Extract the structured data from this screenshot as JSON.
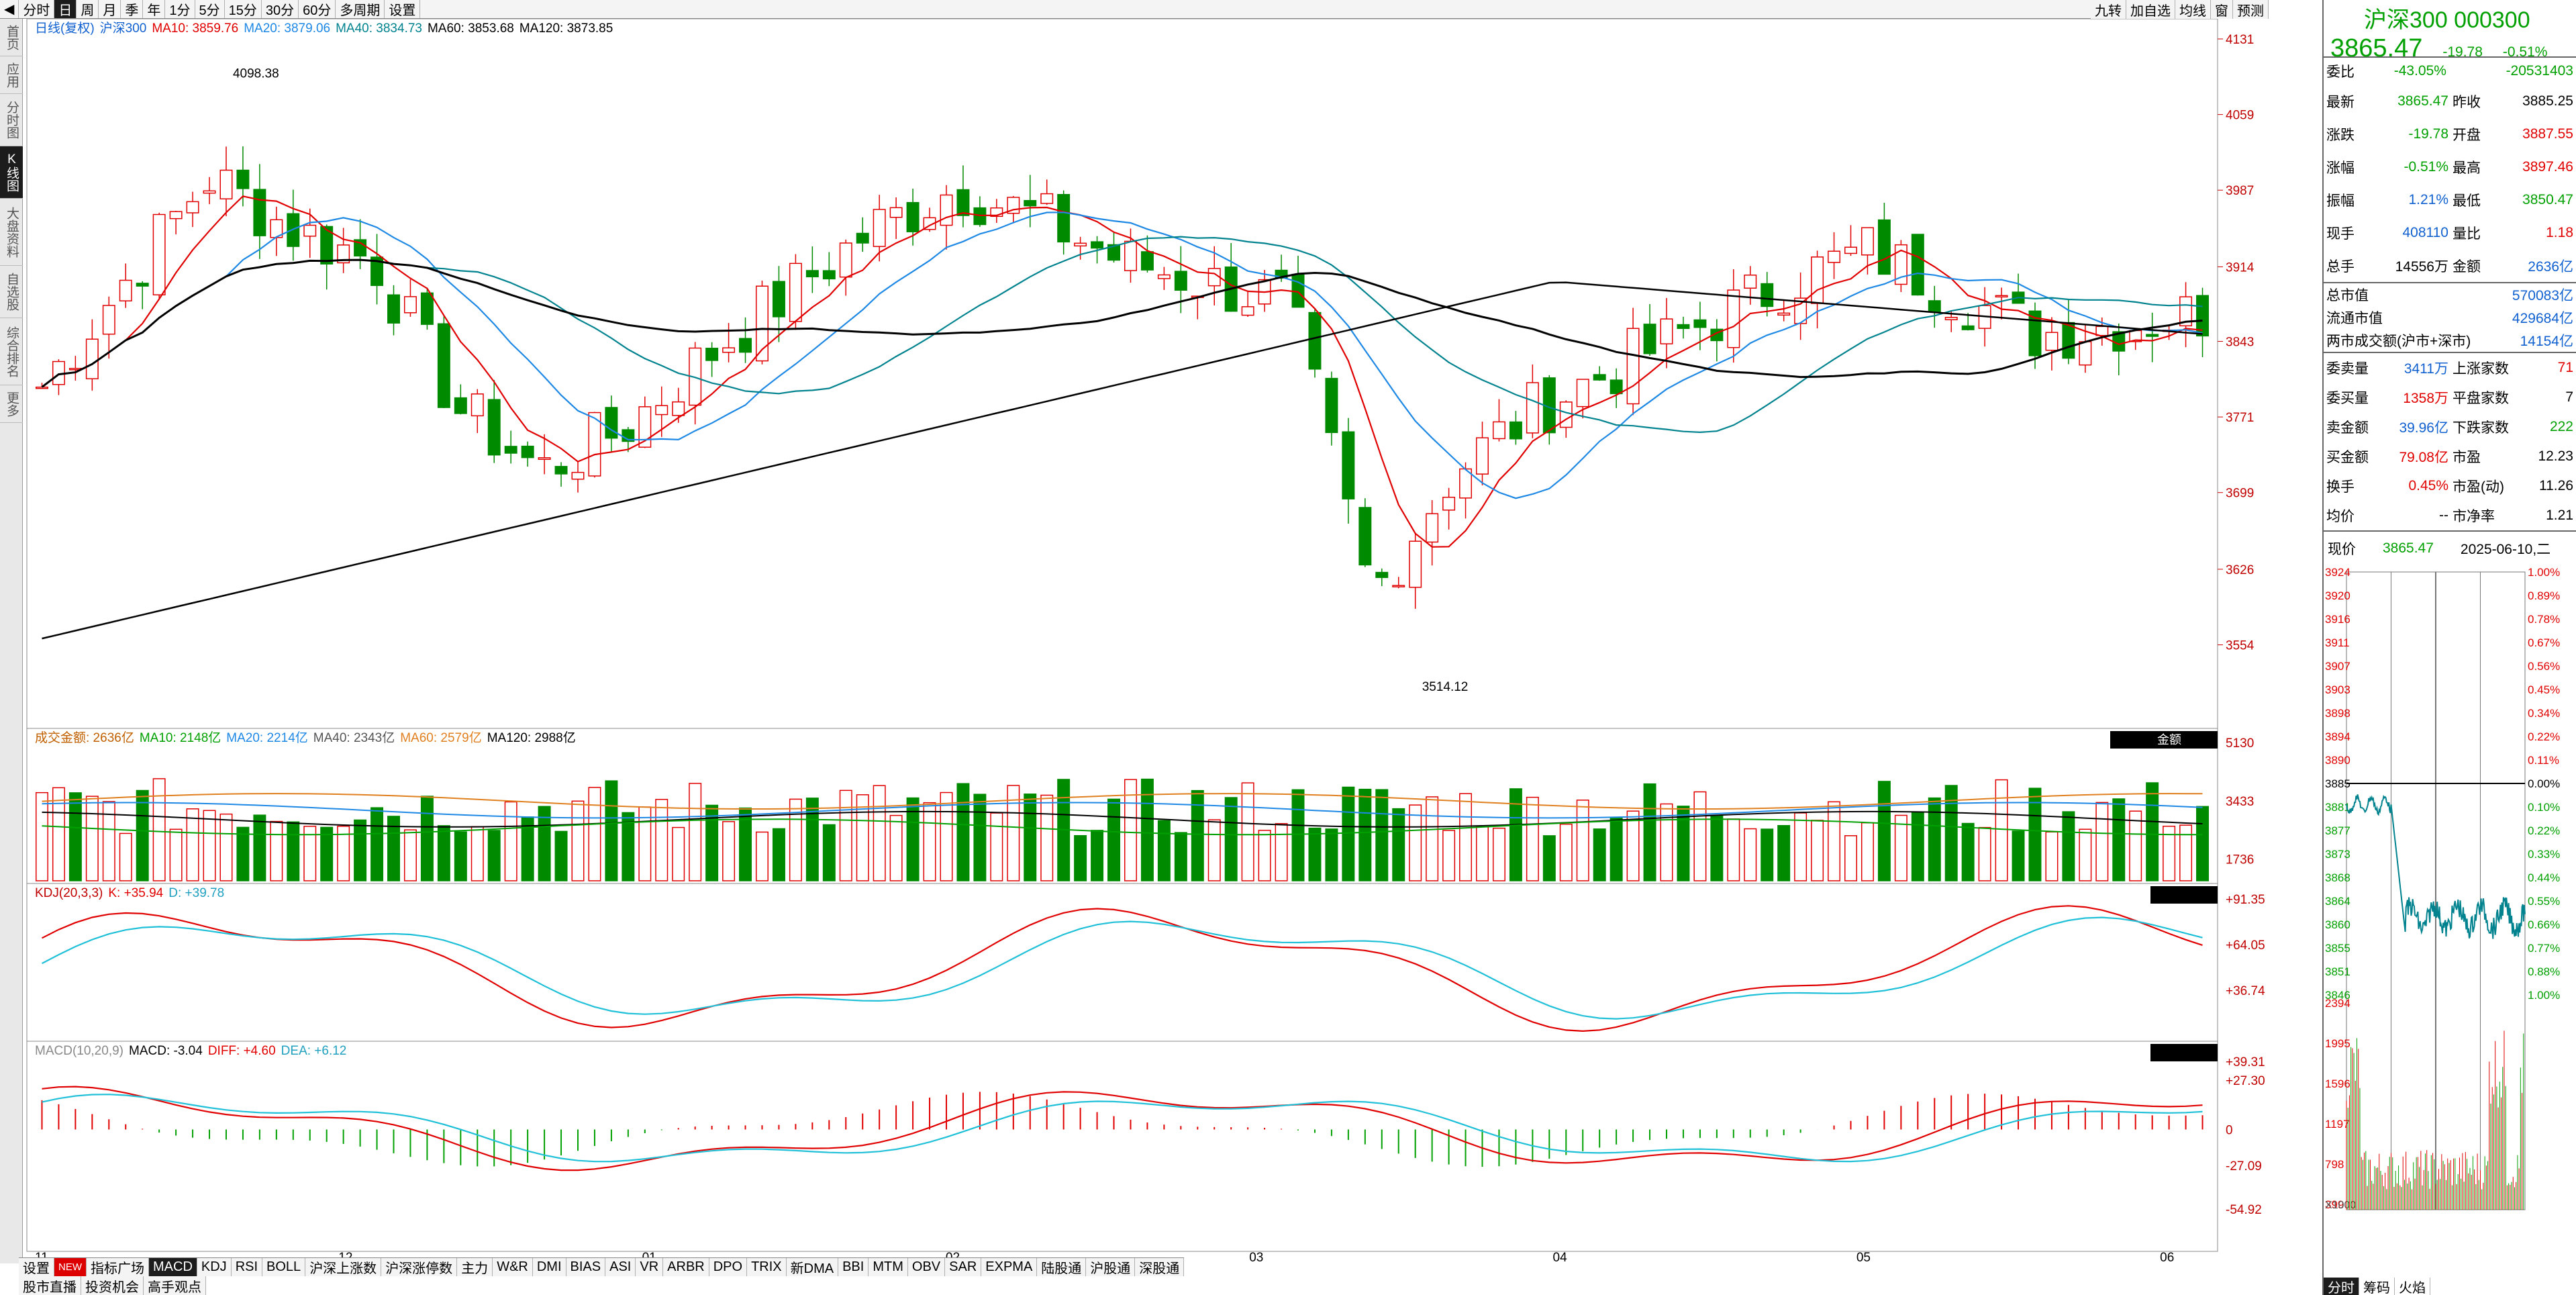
{
  "topbar": {
    "period_buttons": [
      "分时",
      "日",
      "周",
      "月",
      "季",
      "年",
      "1分",
      "5分",
      "15分",
      "30分",
      "60分",
      "多周期",
      "设置"
    ],
    "active_period": "日",
    "right_buttons": [
      "九转",
      "加自选",
      "均线",
      "窗",
      "预测"
    ]
  },
  "sidebar": {
    "items": [
      "首页",
      "应用",
      "分时图",
      "K线图",
      "大盘资料",
      "自选股",
      "综合排名",
      "更多"
    ],
    "active": "K线图"
  },
  "main_legend": {
    "title": "日线(复权)",
    "name": "沪深300",
    "ma10": "MA10: 3859.76",
    "ma20": "MA20: 3879.06",
    "ma40": "MA40: 3834.73",
    "ma60": "MA60: 3853.68",
    "ma120": "MA120: 3873.85"
  },
  "price_axis": [
    "4131",
    "4059",
    "3987",
    "3914",
    "3843",
    "3771",
    "3699",
    "3626",
    "3554"
  ],
  "price_high": "4098.38",
  "price_low": "3514.12",
  "date_axis": [
    "11",
    "12",
    "01",
    "02",
    "03",
    "04",
    "05",
    "06"
  ],
  "volume_legend": {
    "label": "成交金额: 2636亿",
    "ma10": "MA10: 2148亿",
    "ma20": "MA20: 2214亿",
    "ma40": "MA40: 2343亿",
    "ma60": "MA60: 2579亿",
    "ma120": "MA120: 2988亿",
    "button": "金额"
  },
  "volume_axis": [
    "5130",
    "3433",
    "1736"
  ],
  "kdj_legend": {
    "label": "KDJ(20,3,3)",
    "k": "K: +35.94",
    "d": "D: +39.78"
  },
  "kdj_axis": [
    "+91.35",
    "+64.05",
    "+36.74"
  ],
  "macd_legend": {
    "label": "MACD(10,20,9)",
    "macd": "MACD: -3.04",
    "diff": "DIFF: +4.60",
    "dea": "DEA: +6.12"
  },
  "macd_axis": [
    "+39.31",
    "+27.30",
    "0",
    "-27.09",
    "-54.92"
  ],
  "bottom_tabs": [
    "设置",
    "NEW",
    "指标广场",
    "MACD",
    "KDJ",
    "RSI",
    "BOLL",
    "沪深上涨数",
    "沪深涨停数",
    "主力",
    "W&R",
    "DMI",
    "BIAS",
    "ASI",
    "VR",
    "ARBR",
    "DPO",
    "TRIX",
    "新DMA",
    "BBI",
    "MTM",
    "OBV",
    "SAR",
    "EXPMA",
    "陆股通",
    "沪股通",
    "深股通"
  ],
  "active_tab": "MACD",
  "bottom_links": [
    "股市直播",
    "投资机会",
    "高手观点"
  ],
  "quote": {
    "title": "沪深300 000300",
    "price": "3865.47",
    "change": "-19.78",
    "change_pct": "-0.51%",
    "rows": [
      {
        "l1": "委比",
        "v1": "-43.05%",
        "l2": "",
        "v2": "-20531403",
        "c1": "green",
        "c2": "green"
      },
      {
        "l1": "最新",
        "v1": "3865.47",
        "l2": "昨收",
        "v2": "3885.25",
        "c1": "green",
        "c2": ""
      },
      {
        "l1": "涨跌",
        "v1": "-19.78",
        "l2": "开盘",
        "v2": "3887.55",
        "c1": "green",
        "c2": "red"
      },
      {
        "l1": "涨幅",
        "v1": "-0.51%",
        "l2": "最高",
        "v2": "3897.46",
        "c1": "green",
        "c2": "red"
      },
      {
        "l1": "振幅",
        "v1": "1.21%",
        "l2": "最低",
        "v2": "3850.47",
        "c1": "blue",
        "c2": "green"
      },
      {
        "l1": "现手",
        "v1": "408110",
        "l2": "量比",
        "v2": "1.18",
        "c1": "blue",
        "c2": "red"
      },
      {
        "l1": "总手",
        "v1": "14556万",
        "l2": "金额",
        "v2": "2636亿",
        "c1": "",
        "c2": "blue"
      }
    ],
    "total_cap_label": "总市值",
    "total_cap": "570083亿",
    "float_cap_label": "流通市值",
    "float_cap": "429684亿",
    "two_market_label": "两市成交额(沪市+深市)",
    "two_market": "14154亿",
    "rows2": [
      {
        "l1": "委卖量",
        "v1": "3411万",
        "l2": "上涨家数",
        "v2": "71",
        "c1": "blue",
        "c2": "red"
      },
      {
        "l1": "委买量",
        "v1": "1358万",
        "l2": "平盘家数",
        "v2": "7",
        "c1": "red",
        "c2": ""
      },
      {
        "l1": "卖金额",
        "v1": "39.96亿",
        "l2": "下跌家数",
        "v2": "222",
        "c1": "blue",
        "c2": "green"
      },
      {
        "l1": "买金额",
        "v1": "79.08亿",
        "l2": "市盈",
        "v2": "12.23",
        "c1": "red",
        "c2": ""
      },
      {
        "l1": "换手",
        "v1": "0.45%",
        "l2": "市盈(动)",
        "v2": "11.26",
        "c1": "red",
        "c2": ""
      },
      {
        "l1": "均价",
        "v1": "--",
        "l2": "市净率",
        "v2": "1.21",
        "c1": "",
        "c2": ""
      }
    ],
    "now_label": "现价",
    "now_price": "3865.47",
    "date": "2025-06-10,二"
  },
  "mini_chart": {
    "price_labels": [
      "3924",
      "3920",
      "3916",
      "3911",
      "3907",
      "3903",
      "3898",
      "3894",
      "3890",
      "3885",
      "3881",
      "3877",
      "3873",
      "3868",
      "3864",
      "3860",
      "3855",
      "3851",
      "3846"
    ],
    "pct_labels": [
      "1.00%",
      "0.89%",
      "0.78%",
      "0.67%",
      "0.56%",
      "0.45%",
      "0.34%",
      "0.22%",
      "0.11%",
      "0.00%",
      "0.10%",
      "0.22%",
      "0.33%",
      "0.44%",
      "0.55%",
      "0.66%",
      "0.77%",
      "0.88%",
      "1.00%"
    ],
    "vol_labels": [
      "2394",
      "1995",
      "1596",
      "1197",
      "798",
      "399"
    ],
    "unit": "X1000",
    "tabs": [
      "分时",
      "筹码",
      "火焰"
    ]
  },
  "colors": {
    "up": "#e00000",
    "down": "#008a00",
    "ma10": "#e00000",
    "ma20": "#1e88e5",
    "ma40": "#00838f",
    "ma60": "#000000"
  }
}
